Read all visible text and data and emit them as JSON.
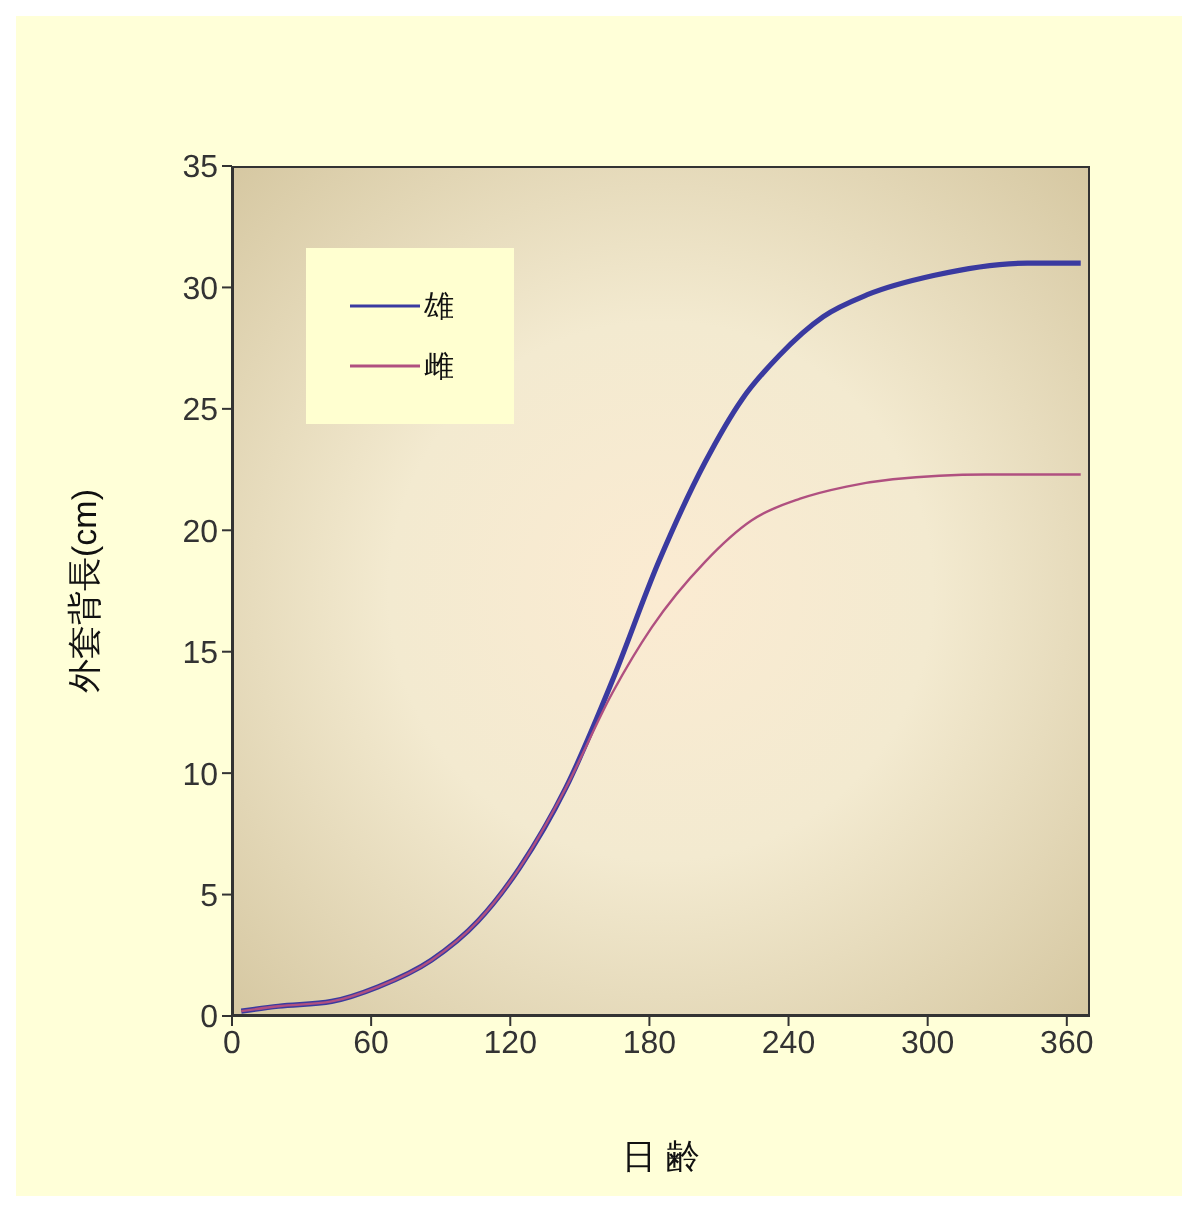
{
  "chart_data": {
    "type": "line",
    "xlabel": "日 齢",
    "ylabel": "外套背長(cm)",
    "xlim": [
      0,
      370
    ],
    "xticks": [
      0,
      60,
      120,
      180,
      240,
      300,
      360
    ],
    "ylim": [
      0,
      35
    ],
    "yticks": [
      0,
      5,
      10,
      15,
      20,
      25,
      30,
      35
    ],
    "grid": false,
    "legend": "top left",
    "marker": "none",
    "line_style": "solid",
    "series": [
      {
        "name": "雄",
        "color": "#3a3aa0",
        "x": [
          4,
          20,
          43,
          63,
          86,
          106,
          124,
          144,
          164,
          184,
          204,
          220,
          236,
          255,
          274,
          303,
          343,
          366
        ],
        "values": [
          0.2,
          0.4,
          0.6,
          1.2,
          2.3,
          3.9,
          6.1,
          9.4,
          13.8,
          18.7,
          22.8,
          25.4,
          27.2,
          28.8,
          29.7,
          30.5,
          31.0,
          31.0
        ]
      },
      {
        "name": "雌",
        "color": "#b05080",
        "x": [
          4,
          20,
          43,
          63,
          86,
          106,
          124,
          144,
          164,
          181,
          204,
          224,
          245,
          265,
          285,
          325,
          366
        ],
        "values": [
          0.2,
          0.4,
          0.6,
          1.2,
          2.3,
          3.9,
          6.1,
          9.4,
          13.3,
          16.0,
          18.7,
          20.4,
          21.3,
          21.8,
          22.1,
          22.3,
          22.3
        ]
      }
    ]
  }
}
